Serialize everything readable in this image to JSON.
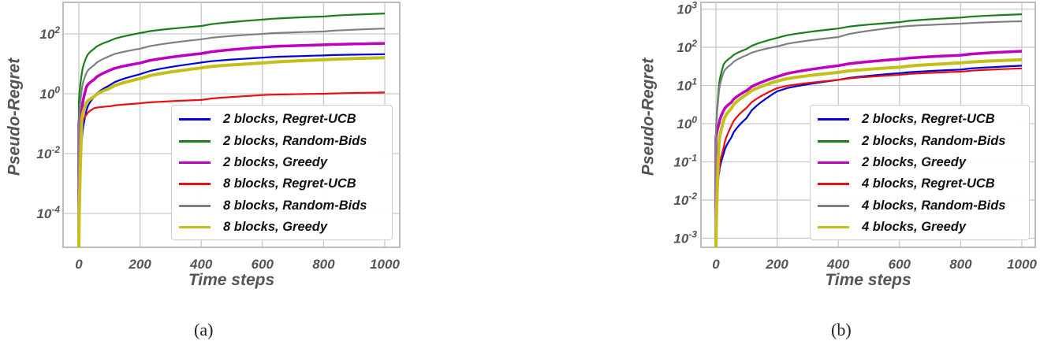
{
  "captions": [
    "(a)",
    "(b)"
  ],
  "chart_data": [
    {
      "type": "line",
      "title": "",
      "panel_label": "(a)",
      "xlabel": "Time steps",
      "ylabel": "Pseudo-Regret",
      "yscale": "log",
      "xlim": [
        -40,
        1050
      ],
      "ylim": [
        7.5e-06,
        1000
      ],
      "xticks": [
        0,
        200,
        400,
        600,
        800,
        1000
      ],
      "xtick_labels": [
        "0",
        "200",
        "400",
        "600",
        "800",
        "1000"
      ],
      "yticks": [
        0.0001,
        0.01,
        1,
        100
      ],
      "ytick_labels": [
        {
          "base": "10",
          "exp": "-4"
        },
        {
          "base": "10",
          "exp": "-2"
        },
        {
          "base": "10",
          "exp": "0"
        },
        {
          "base": "10",
          "exp": "2"
        }
      ],
      "grid": true,
      "legend_position": "lower right",
      "x": [
        0,
        10,
        25,
        50,
        100,
        200,
        400,
        600,
        800,
        1000
      ],
      "series": [
        {
          "name": "2 blocks, Regret-UCB",
          "color": "#0000e0",
          "width": 2.2,
          "values": [
            0.0003,
            0.03,
            0.28,
            0.8,
            1.9,
            4.5,
            11,
            16,
            19,
            21
          ]
        },
        {
          "name": "2 blocks, Random-Bids",
          "color": "#1a7f1a",
          "width": 2.2,
          "values": [
            0.5,
            5,
            17,
            32,
            58,
            106,
            183,
            300,
            380,
            480
          ]
        },
        {
          "name": "2 blocks, Greedy",
          "color": "#bf00bf",
          "width": 3.5,
          "values": [
            0.1,
            0.3,
            1.7,
            3.0,
            6,
            10.6,
            22,
            36,
            43,
            48
          ]
        },
        {
          "name": "8 blocks, Regret-UCB",
          "color": "#e81010",
          "width": 2.2,
          "values": [
            0.0002,
            0.1,
            0.2,
            0.33,
            0.38,
            0.48,
            0.62,
            0.9,
            1.0,
            1.1
          ]
        },
        {
          "name": "8 blocks, Random-Bids",
          "color": "#808080",
          "width": 2.2,
          "values": [
            0.1,
            1.5,
            5,
            9,
            18,
            32,
            66,
            100,
            120,
            150
          ]
        },
        {
          "name": "8 blocks, Greedy",
          "color": "#c4c01a",
          "width": 4,
          "values": [
            1e-05,
            0.15,
            0.5,
            0.8,
            1.5,
            3.2,
            7.3,
            10.6,
            13.6,
            16
          ]
        }
      ]
    },
    {
      "type": "line",
      "title": "",
      "panel_label": "(b)",
      "xlabel": "Time steps",
      "ylabel": "Pseudo-Regret",
      "yscale": "log",
      "xlim": [
        -40,
        1050
      ],
      "ylim": [
        0.00055,
        1300
      ],
      "xticks": [
        0,
        200,
        400,
        600,
        800,
        1000
      ],
      "xtick_labels": [
        "0",
        "200",
        "400",
        "600",
        "800",
        "1000"
      ],
      "yticks": [
        0.001,
        0.01,
        0.1,
        1,
        10,
        100,
        1000
      ],
      "ytick_labels": [
        {
          "base": "10",
          "exp": "-3"
        },
        {
          "base": "10",
          "exp": "-2"
        },
        {
          "base": "10",
          "exp": "-1"
        },
        {
          "base": "10",
          "exp": "0"
        },
        {
          "base": "10",
          "exp": "1"
        },
        {
          "base": "10",
          "exp": "2"
        },
        {
          "base": "10",
          "exp": "3"
        }
      ],
      "grid": true,
      "legend_position": "lower right",
      "x": [
        0,
        10,
        25,
        50,
        100,
        200,
        400,
        600,
        800,
        1000
      ],
      "series": [
        {
          "name": "2 blocks, Regret-UCB",
          "color": "#0000e0",
          "width": 2.2,
          "values": [
            0.01,
            0.05,
            0.16,
            0.43,
            1.4,
            7,
            14,
            21,
            26,
            33
          ]
        },
        {
          "name": "2 blocks, Random-Bids",
          "color": "#1a7f1a",
          "width": 2.2,
          "values": [
            0.5,
            10,
            35,
            55,
            90,
            176,
            310,
            455,
            600,
            730
          ]
        },
        {
          "name": "2 blocks, Greedy",
          "color": "#bf00bf",
          "width": 3.5,
          "values": [
            0.4,
            1.0,
            2.2,
            3.6,
            7.3,
            17,
            33,
            49,
            62,
            79
          ]
        },
        {
          "name": "4 blocks, Regret-UCB",
          "color": "#e81010",
          "width": 2.2,
          "values": [
            0.002,
            0.06,
            0.23,
            0.87,
            2.6,
            8.5,
            14,
            19,
            23,
            28
          ]
        },
        {
          "name": "4 blocks, Random-Bids",
          "color": "#808080",
          "width": 2.2,
          "values": [
            0.5,
            7,
            22,
            36,
            62,
            105,
            185,
            343,
            415,
            480
          ]
        },
        {
          "name": "4 blocks, Greedy",
          "color": "#c4c01a",
          "width": 4,
          "values": [
            0.0006,
            0.3,
            1.2,
            2.5,
            5.8,
            13,
            22,
            30,
            39,
            47
          ]
        }
      ]
    }
  ]
}
